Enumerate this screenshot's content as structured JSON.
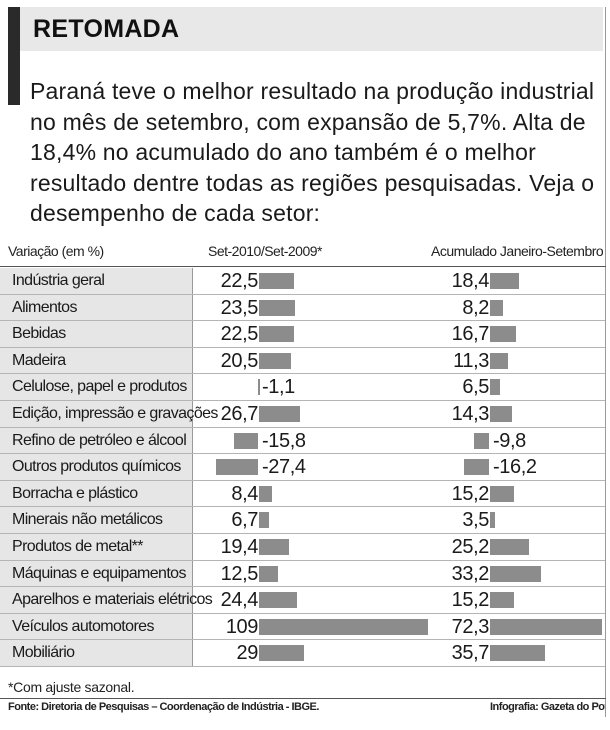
{
  "header": {
    "title": "RETOMADA",
    "intro": "Paraná teve o melhor resultado na produção industrial no mês de setembro, com expansão de 5,7%. Alta de 18,4% no acumulado do ano também é o melhor resultado dentre todas as regiões pesquisadas. Veja o desempenho de cada setor:"
  },
  "colors": {
    "bar": "#8c8c8c",
    "label_bg": "#e6e6e6",
    "accent": "#2a2a2a"
  },
  "chart_data": {
    "type": "bar",
    "orientation": "horizontal",
    "xlabel": "Variação (em %)",
    "categories": [
      "Indústria geral",
      "Alimentos",
      "Bebidas",
      "Madeira",
      "Celulose, papel e produtos",
      "Edição, impressão e gravações",
      "Refino de petróleo e álcool",
      "Outros produtos químicos",
      "Borracha e plástico",
      "Minerais não metálicos",
      "Produtos de metal**",
      "Máquinas e equipamentos",
      "Aparelhos e materiais elétricos",
      "Veículos automotores",
      "Mobiliário"
    ],
    "series": [
      {
        "name": "Set-2010/Set-2009*",
        "values": [
          22.5,
          23.5,
          22.5,
          20.5,
          -1.1,
          26.7,
          -15.8,
          -27.4,
          8.4,
          6.7,
          19.4,
          12.5,
          24.4,
          109,
          29
        ],
        "labels": [
          "22,5",
          "23,5",
          "22,5",
          "20,5",
          "-1,1",
          "26,7",
          "-15,8",
          "-27,4",
          "8,4",
          "6,7",
          "19,4",
          "12,5",
          "24,4",
          "109",
          "29"
        ]
      },
      {
        "name": "Acumulado Janeiro-Setembro",
        "values": [
          18.4,
          8.2,
          16.7,
          11.3,
          6.5,
          14.3,
          -9.8,
          -16.2,
          15.2,
          3.5,
          25.2,
          33.2,
          15.2,
          72.3,
          35.7
        ],
        "labels": [
          "18,4",
          "8,2",
          "16,7",
          "11,3",
          "6,5",
          "14,3",
          "-9,8",
          "-16,2",
          "15,2",
          "3,5",
          "25,2",
          "33,2",
          "15,2",
          "72,3",
          "35,7"
        ]
      }
    ]
  },
  "footer": {
    "footnote": "*Com ajuste sazonal.",
    "source": "Fonte: Diretoria de Pesquisas – Coordenação de Indústria - IBGE.",
    "credit": "Infografia: Gazeta do Povo"
  }
}
